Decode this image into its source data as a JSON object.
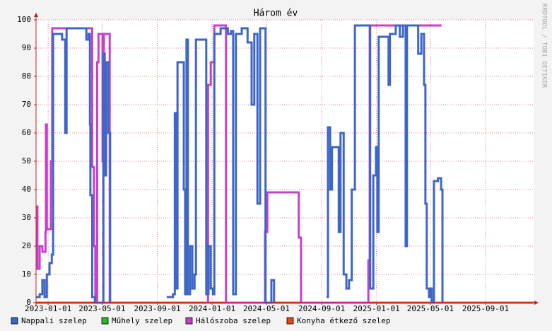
{
  "chart_data": {
    "type": "line",
    "title": "Három év",
    "side_text": "RRDTOOL / TOBI OETIKER",
    "xlim": [
      "2022-12-05",
      "2025-12-17"
    ],
    "xticks": [
      "2023-01-01",
      "2023-05-01",
      "2023-09-01",
      "2024-01-01",
      "2024-05-01",
      "2024-09-01",
      "2025-01-01",
      "2025-05-01",
      "2025-09-01"
    ],
    "ylim": [
      0,
      100
    ],
    "yticks": [
      0,
      10,
      20,
      30,
      40,
      50,
      60,
      70,
      80,
      90,
      100
    ],
    "grid": true,
    "step": true,
    "legend": "bottom",
    "series": [
      {
        "name": "Nappali szelep",
        "color": "#3d66c8",
        "x": [
          "2022-12-05",
          "2022-12-13",
          "2022-12-19",
          "2022-12-24",
          "2022-12-29",
          "2023-01-04",
          "2023-01-09",
          "2023-01-12",
          "2023-01-29",
          "2023-02-01",
          "2023-02-08",
          "2023-02-11",
          "2023-03-24",
          "2023-03-27",
          "2023-04-01",
          "2023-04-04",
          "2023-04-05",
          "2023-04-09",
          "2023-04-15",
          "2023-05-01",
          "2023-05-04",
          "2023-05-07",
          "2023-05-10",
          "2023-05-15",
          "2023-05-19",
          "2023-07-28",
          "2023-09-22",
          "2023-10-06",
          "2023-10-10",
          "2023-10-13",
          "2023-10-16",
          "2023-10-27",
          "2023-10-30",
          "2023-11-02",
          "2023-11-05",
          "2023-11-08",
          "2023-11-13",
          "2023-11-18",
          "2023-11-23",
          "2023-11-26",
          "2023-12-16",
          "2023-12-19",
          "2023-12-24",
          "2023-12-29",
          "2024-01-03",
          "2024-01-06",
          "2024-01-20",
          "2024-02-05",
          "2024-02-12",
          "2024-02-17",
          "2024-02-23",
          "2024-03-07",
          "2024-03-20",
          "2024-03-29",
          "2024-04-04",
          "2024-04-11",
          "2024-04-17",
          "2024-04-26",
          "2024-04-29",
          "2024-05-12",
          "2024-05-18",
          "2024-05-25",
          "2024-09-12",
          "2024-09-15",
          "2024-09-20",
          "2024-09-24",
          "2024-10-04",
          "2024-10-09",
          "2024-10-13",
          "2024-10-20",
          "2024-10-26",
          "2024-11-01",
          "2024-11-07",
          "2024-11-14",
          "2024-12-12",
          "2024-12-18",
          "2024-12-25",
          "2024-12-31",
          "2025-01-03",
          "2025-01-06",
          "2025-01-25",
          "2025-01-28",
          "2025-01-31",
          "2025-02-13",
          "2025-02-22",
          "2025-03-01",
          "2025-03-07",
          "2025-03-10",
          "2025-03-26",
          "2025-04-04",
          "2025-04-11",
          "2025-04-17",
          "2025-04-20",
          "2025-04-23",
          "2025-04-28",
          "2025-05-01",
          "2025-05-04",
          "2025-05-09",
          "2025-05-18",
          "2025-05-25",
          "2025-05-28"
        ],
        "values": [
          2,
          3,
          8,
          2,
          10,
          14,
          17,
          95,
          95,
          93,
          60,
          97,
          97,
          93,
          95,
          63,
          38,
          2,
          0,
          0,
          88,
          45,
          85,
          60,
          0,
          null,
          2,
          3,
          67,
          5,
          85,
          85,
          40,
          3,
          93,
          3,
          20,
          5,
          10,
          93,
          93,
          3,
          20,
          5,
          3,
          95,
          97,
          95,
          96,
          3,
          95,
          97,
          92,
          70,
          95,
          35,
          97,
          97,
          0,
          8,
          0,
          null,
          2,
          62,
          40,
          55,
          55,
          25,
          60,
          10,
          5,
          8,
          40,
          98,
          98,
          5,
          45,
          55,
          25,
          94,
          94,
          77,
          95,
          98,
          94,
          98,
          20,
          98,
          98,
          88,
          95,
          77,
          35,
          5,
          2,
          5,
          0,
          43,
          44,
          40,
          0
        ]
      },
      {
        "name": "Műhely szelep",
        "color": "#22bb22",
        "x": [
          "2023-01-01",
          "2023-05-19"
        ],
        "values": [
          0,
          0
        ]
      },
      {
        "name": "Hálószoba szelep",
        "color": "#c640cc",
        "x": [
          "2022-12-05",
          "2022-12-08",
          "2022-12-13",
          "2022-12-19",
          "2022-12-26",
          "2022-12-27",
          "2022-12-29",
          "2023-01-06",
          "2023-01-07",
          "2023-01-10",
          "2023-04-09",
          "2023-04-13",
          "2023-04-16",
          "2023-04-20",
          "2023-04-23",
          "2023-05-02",
          "2023-05-05",
          "2023-05-18",
          "2023-06-10",
          "2023-12-19",
          "2023-12-23",
          "2023-12-29",
          "2024-01-06",
          "2024-02-01",
          "2024-04-28",
          "2024-05-03",
          "2024-07-12",
          "2024-07-17",
          "2024-12-14",
          "2024-12-17",
          "2025-05-26"
        ],
        "values": [
          34,
          12,
          20,
          18,
          25,
          63,
          26,
          26,
          50,
          97,
          48,
          20,
          0,
          85,
          95,
          50,
          95,
          0,
          null,
          0,
          77,
          85,
          98,
          0,
          25,
          39,
          23,
          0,
          15,
          98,
          98
        ]
      },
      {
        "name": "Konyha étkező szelep",
        "color": "#ee4411",
        "x": [
          "2022-12-05",
          "2025-12-17"
        ],
        "values": [
          0,
          0
        ]
      }
    ]
  }
}
